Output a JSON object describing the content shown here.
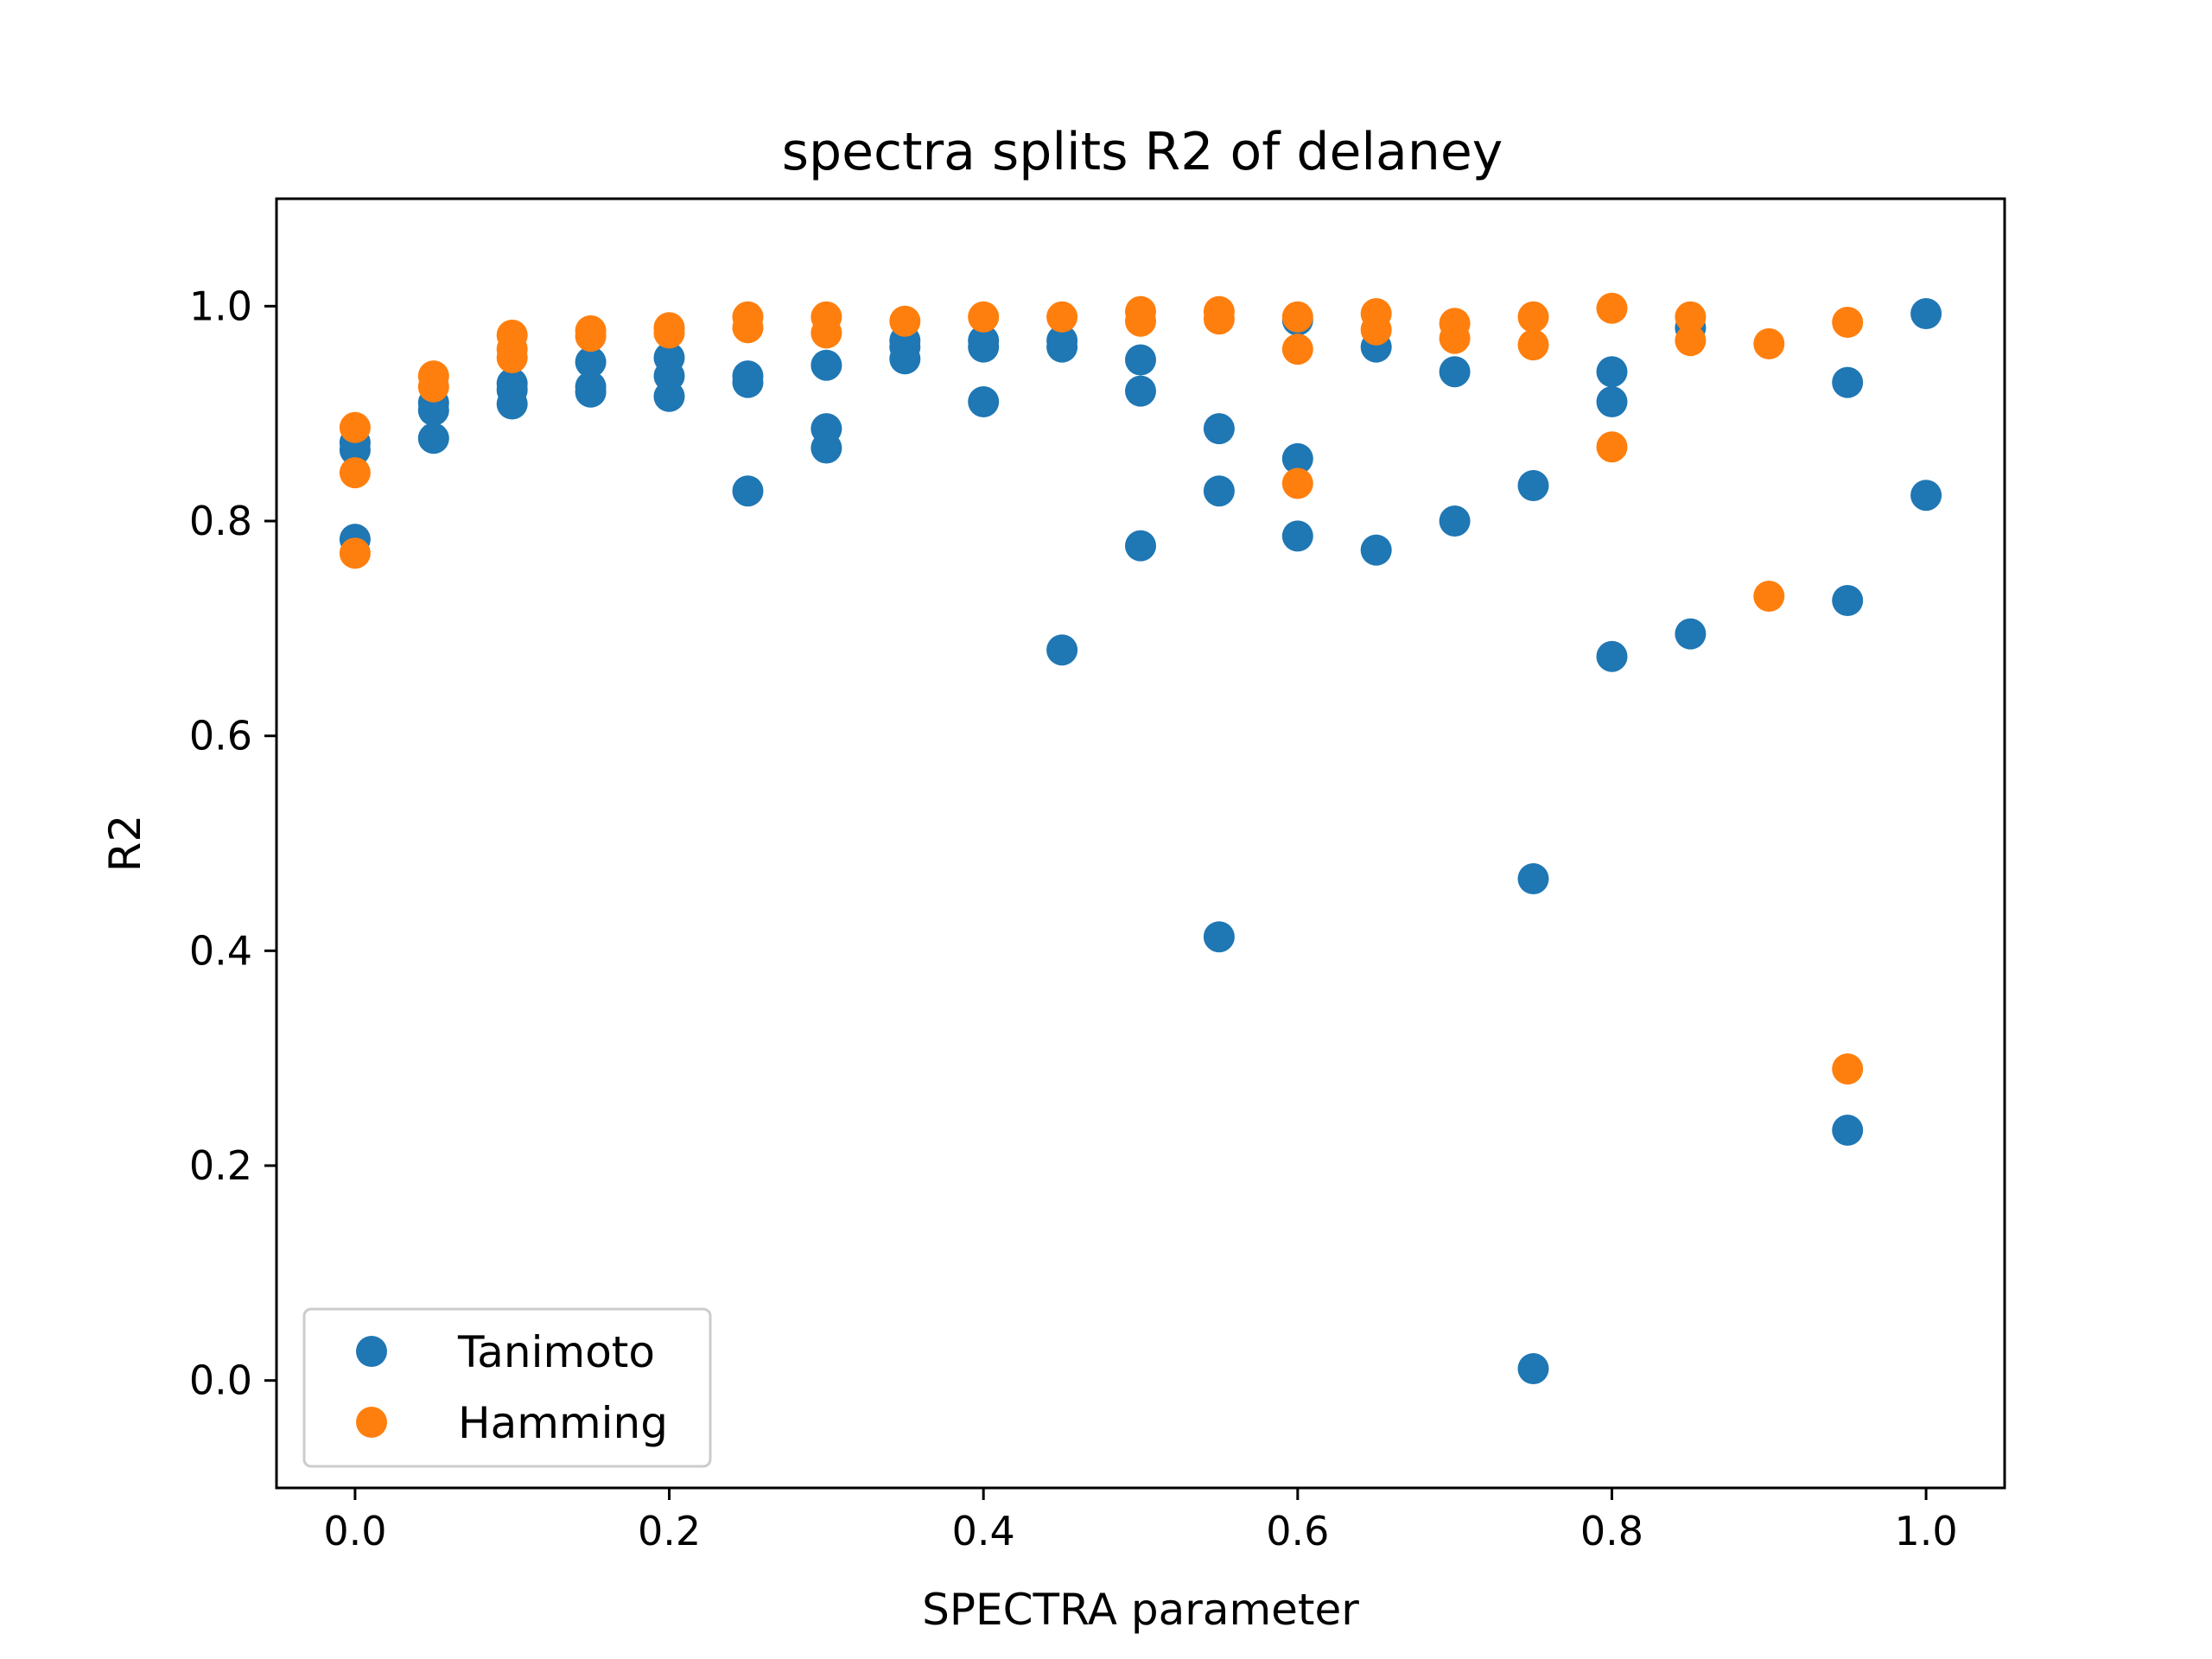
{
  "chart_data": {
    "type": "scatter",
    "title": "spectra splits R2 of delaney",
    "xlabel": "SPECTRA parameter",
    "ylabel": "R2",
    "xlim": [
      -0.05,
      1.05
    ],
    "ylim": [
      -0.1,
      1.1
    ],
    "xticks": [
      "0.0",
      "0.2",
      "0.4",
      "0.6",
      "0.8",
      "1.0"
    ],
    "xtick_values": [
      0.0,
      0.2,
      0.4,
      0.6,
      0.8,
      1.0
    ],
    "yticks": [
      "0.0",
      "0.2",
      "0.4",
      "0.6",
      "0.8",
      "1.0"
    ],
    "ytick_values": [
      0.0,
      0.2,
      0.4,
      0.6,
      0.8,
      1.0
    ],
    "grid": false,
    "legend_position": "lower-left",
    "series": [
      {
        "name": "Tanimoto",
        "color": "#1f77b4",
        "points": [
          [
            0.0,
            0.873
          ],
          [
            0.0,
            0.866
          ],
          [
            0.0,
            0.783
          ],
          [
            0.05,
            0.91
          ],
          [
            0.05,
            0.903
          ],
          [
            0.05,
            0.877
          ],
          [
            0.1,
            0.928
          ],
          [
            0.1,
            0.922
          ],
          [
            0.1,
            0.909
          ],
          [
            0.15,
            0.948
          ],
          [
            0.15,
            0.925
          ],
          [
            0.15,
            0.92
          ],
          [
            0.2,
            0.952
          ],
          [
            0.2,
            0.935
          ],
          [
            0.2,
            0.916
          ],
          [
            0.25,
            0.935
          ],
          [
            0.25,
            0.929
          ],
          [
            0.25,
            0.828
          ],
          [
            0.3,
            0.945
          ],
          [
            0.3,
            0.886
          ],
          [
            0.3,
            0.868
          ],
          [
            0.35,
            0.968
          ],
          [
            0.35,
            0.962
          ],
          [
            0.35,
            0.951
          ],
          [
            0.4,
            0.968
          ],
          [
            0.4,
            0.962
          ],
          [
            0.4,
            0.911
          ],
          [
            0.45,
            0.968
          ],
          [
            0.45,
            0.962
          ],
          [
            0.45,
            0.68
          ],
          [
            0.5,
            0.95
          ],
          [
            0.5,
            0.921
          ],
          [
            0.5,
            0.777
          ],
          [
            0.55,
            0.886
          ],
          [
            0.55,
            0.828
          ],
          [
            0.55,
            0.413
          ],
          [
            0.6,
            0.987
          ],
          [
            0.6,
            0.858
          ],
          [
            0.6,
            0.786
          ],
          [
            0.65,
            0.962
          ],
          [
            0.65,
            0.773
          ],
          [
            0.7,
            0.939
          ],
          [
            0.7,
            0.8
          ],
          [
            0.75,
            0.833
          ],
          [
            0.75,
            0.467
          ],
          [
            0.75,
            0.011
          ],
          [
            0.8,
            0.939
          ],
          [
            0.8,
            0.911
          ],
          [
            0.8,
            0.674
          ],
          [
            0.85,
            0.98
          ],
          [
            0.85,
            0.695
          ],
          [
            0.95,
            0.929
          ],
          [
            0.95,
            0.726
          ],
          [
            0.95,
            0.233
          ],
          [
            1.0,
            0.993
          ],
          [
            1.0,
            0.824
          ]
        ]
      },
      {
        "name": "Hamming",
        "color": "#ff7f0e",
        "points": [
          [
            0.0,
            0.887
          ],
          [
            0.0,
            0.845
          ],
          [
            0.0,
            0.77
          ],
          [
            0.05,
            0.935
          ],
          [
            0.05,
            0.925
          ],
          [
            0.1,
            0.973
          ],
          [
            0.1,
            0.96
          ],
          [
            0.1,
            0.952
          ],
          [
            0.15,
            0.977
          ],
          [
            0.15,
            0.972
          ],
          [
            0.2,
            0.98
          ],
          [
            0.2,
            0.975
          ],
          [
            0.25,
            0.99
          ],
          [
            0.25,
            0.98
          ],
          [
            0.3,
            0.99
          ],
          [
            0.3,
            0.975
          ],
          [
            0.35,
            0.986
          ],
          [
            0.4,
            0.99
          ],
          [
            0.45,
            0.99
          ],
          [
            0.5,
            0.995
          ],
          [
            0.5,
            0.986
          ],
          [
            0.55,
            0.995
          ],
          [
            0.55,
            0.988
          ],
          [
            0.6,
            0.99
          ],
          [
            0.6,
            0.96
          ],
          [
            0.6,
            0.835
          ],
          [
            0.65,
            0.993
          ],
          [
            0.65,
            0.978
          ],
          [
            0.7,
            0.984
          ],
          [
            0.7,
            0.97
          ],
          [
            0.75,
            0.99
          ],
          [
            0.75,
            0.964
          ],
          [
            0.8,
            0.998
          ],
          [
            0.8,
            0.869
          ],
          [
            0.85,
            0.99
          ],
          [
            0.85,
            0.968
          ],
          [
            0.9,
            0.965
          ],
          [
            0.9,
            0.73
          ],
          [
            0.95,
            0.985
          ],
          [
            0.95,
            0.29
          ]
        ]
      }
    ]
  }
}
